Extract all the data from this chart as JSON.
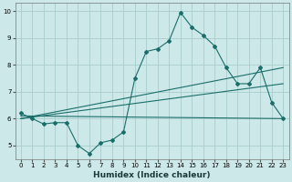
{
  "xlabel": "Humidex (Indice chaleur)",
  "bg_color": "#cce8e8",
  "grid_color": "#aacccc",
  "line_color": "#1a6e6a",
  "xlim": [
    -0.5,
    23.5
  ],
  "ylim": [
    4.5,
    10.3
  ],
  "xticks": [
    0,
    1,
    2,
    3,
    4,
    5,
    6,
    7,
    8,
    9,
    10,
    11,
    12,
    13,
    14,
    15,
    16,
    17,
    18,
    19,
    20,
    21,
    22,
    23
  ],
  "yticks": [
    5,
    6,
    7,
    8,
    9,
    10
  ],
  "series1_x": [
    0,
    1,
    2,
    3,
    4,
    5,
    6,
    7,
    8,
    9,
    10,
    11,
    12,
    13,
    14,
    15,
    16,
    17,
    18,
    19,
    20,
    21,
    22,
    23
  ],
  "series1_y": [
    6.2,
    6.0,
    5.8,
    5.85,
    5.85,
    5.0,
    4.7,
    5.1,
    5.2,
    5.5,
    7.5,
    8.5,
    8.6,
    8.9,
    9.95,
    9.4,
    9.1,
    8.7,
    7.9,
    7.3,
    7.3,
    7.9,
    6.6,
    6.0
  ],
  "series2_x": [
    0,
    23
  ],
  "series2_y": [
    6.1,
    6.0
  ],
  "series3_x": [
    0,
    23
  ],
  "series3_y": [
    6.0,
    7.9
  ],
  "series4_x": [
    0,
    23
  ],
  "series4_y": [
    6.0,
    7.3
  ],
  "tick_fontsize": 5.0,
  "xlabel_fontsize": 6.5
}
